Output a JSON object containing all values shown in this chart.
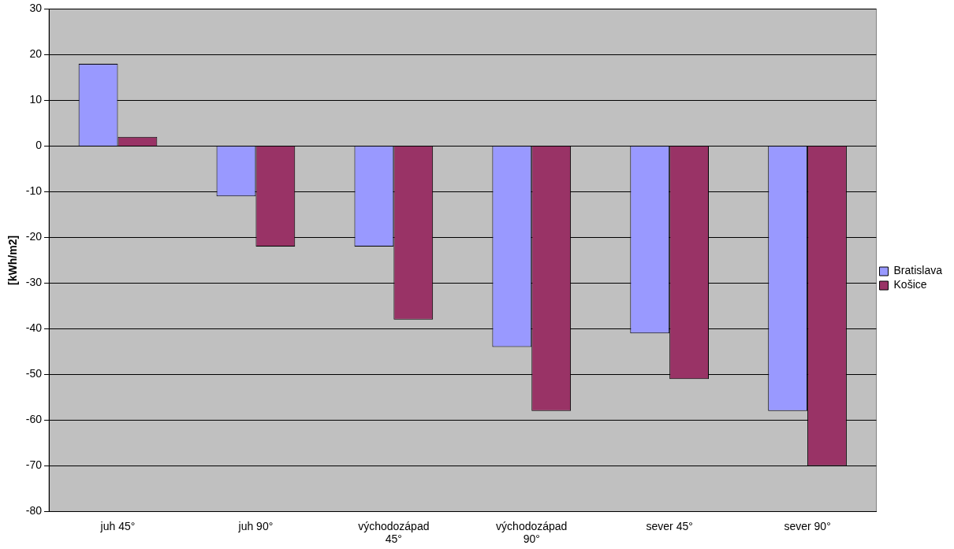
{
  "chart_data": {
    "type": "bar",
    "ylabel": "[kWh/m2]",
    "categories": [
      "juh 45°",
      "juh 90°",
      "východozápad 45°",
      "východozápad 90°",
      "sever 45°",
      "sever 90°"
    ],
    "series": [
      {
        "name": "Bratislava",
        "color": "#9999ff",
        "values": [
          18,
          -11,
          -22,
          -44,
          -41,
          -58
        ]
      },
      {
        "name": "Košice",
        "color": "#993366",
        "values": [
          2,
          -22,
          -38,
          -58,
          -51,
          -70
        ]
      }
    ],
    "ylim": [
      -80,
      30
    ],
    "yticks": [
      -80,
      -70,
      -60,
      -50,
      -40,
      -30,
      -20,
      -10,
      0,
      10,
      20,
      30
    ],
    "grid": "y",
    "legend": "right"
  }
}
